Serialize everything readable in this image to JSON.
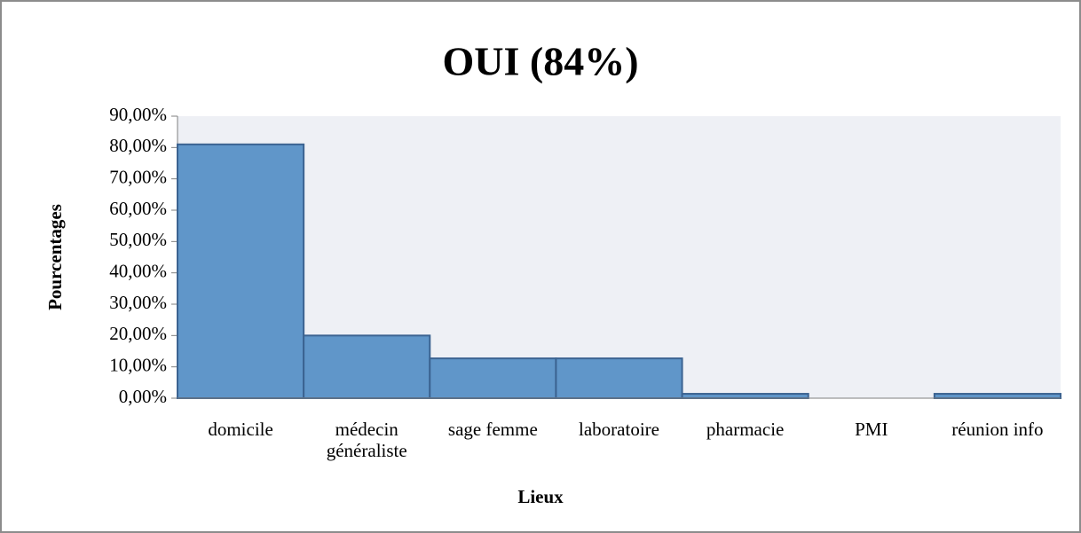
{
  "chart_data": {
    "type": "bar",
    "title": "OUI (84%)",
    "x_label": "Lieux",
    "y_label": "Pourcentages",
    "categories": [
      "domicile",
      "médecin généraliste",
      "sage femme",
      "laboratoire",
      "pharmacie",
      "PMI",
      "réunion info"
    ],
    "values": [
      81,
      20,
      12.7,
      12.7,
      1.4,
      0,
      1.4
    ],
    "color": "#6096c9",
    "ylim": [
      0,
      90
    ],
    "yticks": [
      {
        "value": 0,
        "label": "0,00%"
      },
      {
        "value": 10,
        "label": "10,00%"
      },
      {
        "value": 20,
        "label": "20,00%"
      },
      {
        "value": 30,
        "label": "30,00%"
      },
      {
        "value": 40,
        "label": "40,00%"
      },
      {
        "value": 50,
        "label": "50,00%"
      },
      {
        "value": 60,
        "label": "60,00%"
      },
      {
        "value": 70,
        "label": "70,00%"
      },
      {
        "value": 80,
        "label": "80,00%"
      },
      {
        "value": 90,
        "label": "90,00%"
      }
    ]
  }
}
